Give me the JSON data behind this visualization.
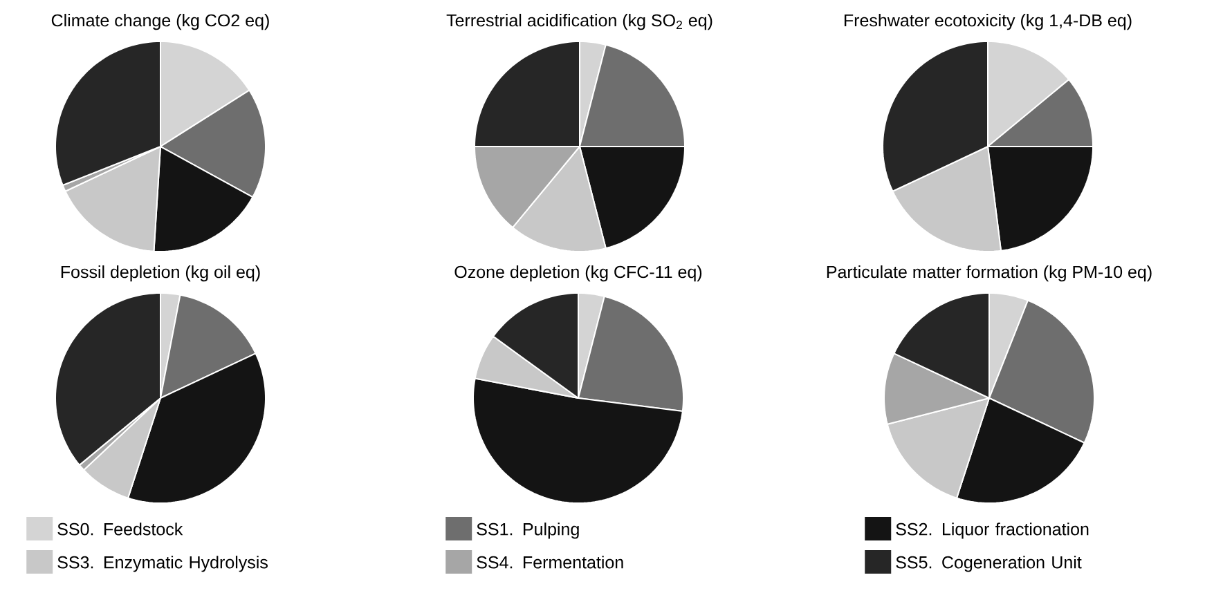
{
  "chart_data": [
    {
      "type": "pie",
      "title": "Climate change (kg CO2 eq)",
      "categories": [
        null,
        null,
        null,
        null,
        null,
        null
      ],
      "values": [
        16,
        17,
        18,
        17,
        1,
        31
      ],
      "colors": [
        "#d4d4d4",
        "#6e6e6e",
        "#141414",
        "#c8c8c8",
        "#a6a6a6",
        "#262626"
      ]
    },
    {
      "type": "pie",
      "title": "Terrestrial acidification (kg SO$_{2}$ eq)",
      "categories": [
        null,
        null,
        null,
        null,
        null,
        null
      ],
      "values": [
        4,
        21,
        21,
        15,
        14,
        25
      ],
      "colors": [
        "#d4d4d4",
        "#6e6e6e",
        "#141414",
        "#c8c8c8",
        "#a6a6a6",
        "#262626"
      ]
    },
    {
      "type": "pie",
      "title": "Freshwater ecotoxicity (kg 1,4-DB eq)",
      "categories": [
        null,
        null,
        null,
        null,
        null,
        null
      ],
      "values": [
        14,
        11,
        23,
        20,
        0,
        32
      ],
      "colors": [
        "#d4d4d4",
        "#6e6e6e",
        "#141414",
        "#c8c8c8",
        "#a6a6a6",
        "#262626"
      ]
    },
    {
      "type": "pie",
      "title": "Fossil depletion (kg oil eq)",
      "categories": [
        "SS0. Feedstock",
        "SS1. Pulping",
        "SS2. Liquor fractionation",
        "SS3. Enzymatic Hydrolysis",
        "SS4. Fermentation",
        "SS5. Cogeneration Unit"
      ],
      "values": [
        3,
        15,
        37,
        8,
        1,
        36
      ],
      "colors": [
        "#d4d4d4",
        "#6e6e6e",
        "#141414",
        "#c8c8c8",
        "#a6a6a6",
        "#262626"
      ],
      "legend": "bottom"
    },
    {
      "type": "pie",
      "title": "Ozone depletion (kg CFC-11 eq)",
      "categories": [
        null,
        null,
        null,
        null,
        null,
        null
      ],
      "values": [
        4,
        23,
        51,
        7,
        0,
        15
      ],
      "colors": [
        "#d4d4d4",
        "#6e6e6e",
        "#141414",
        "#c8c8c8",
        "#a6a6a6",
        "#262626"
      ]
    },
    {
      "type": "pie",
      "title": "Particulate matter formation (kg PM-10 eq)",
      "categories": [
        null,
        null,
        null,
        null,
        null,
        null
      ],
      "values": [
        6,
        26,
        23,
        16,
        11,
        18
      ],
      "colors": [
        "#d4d4d4",
        "#6e6e6e",
        "#141414",
        "#c8c8c8",
        "#a6a6a6",
        "#262626"
      ]
    }
  ]
}
